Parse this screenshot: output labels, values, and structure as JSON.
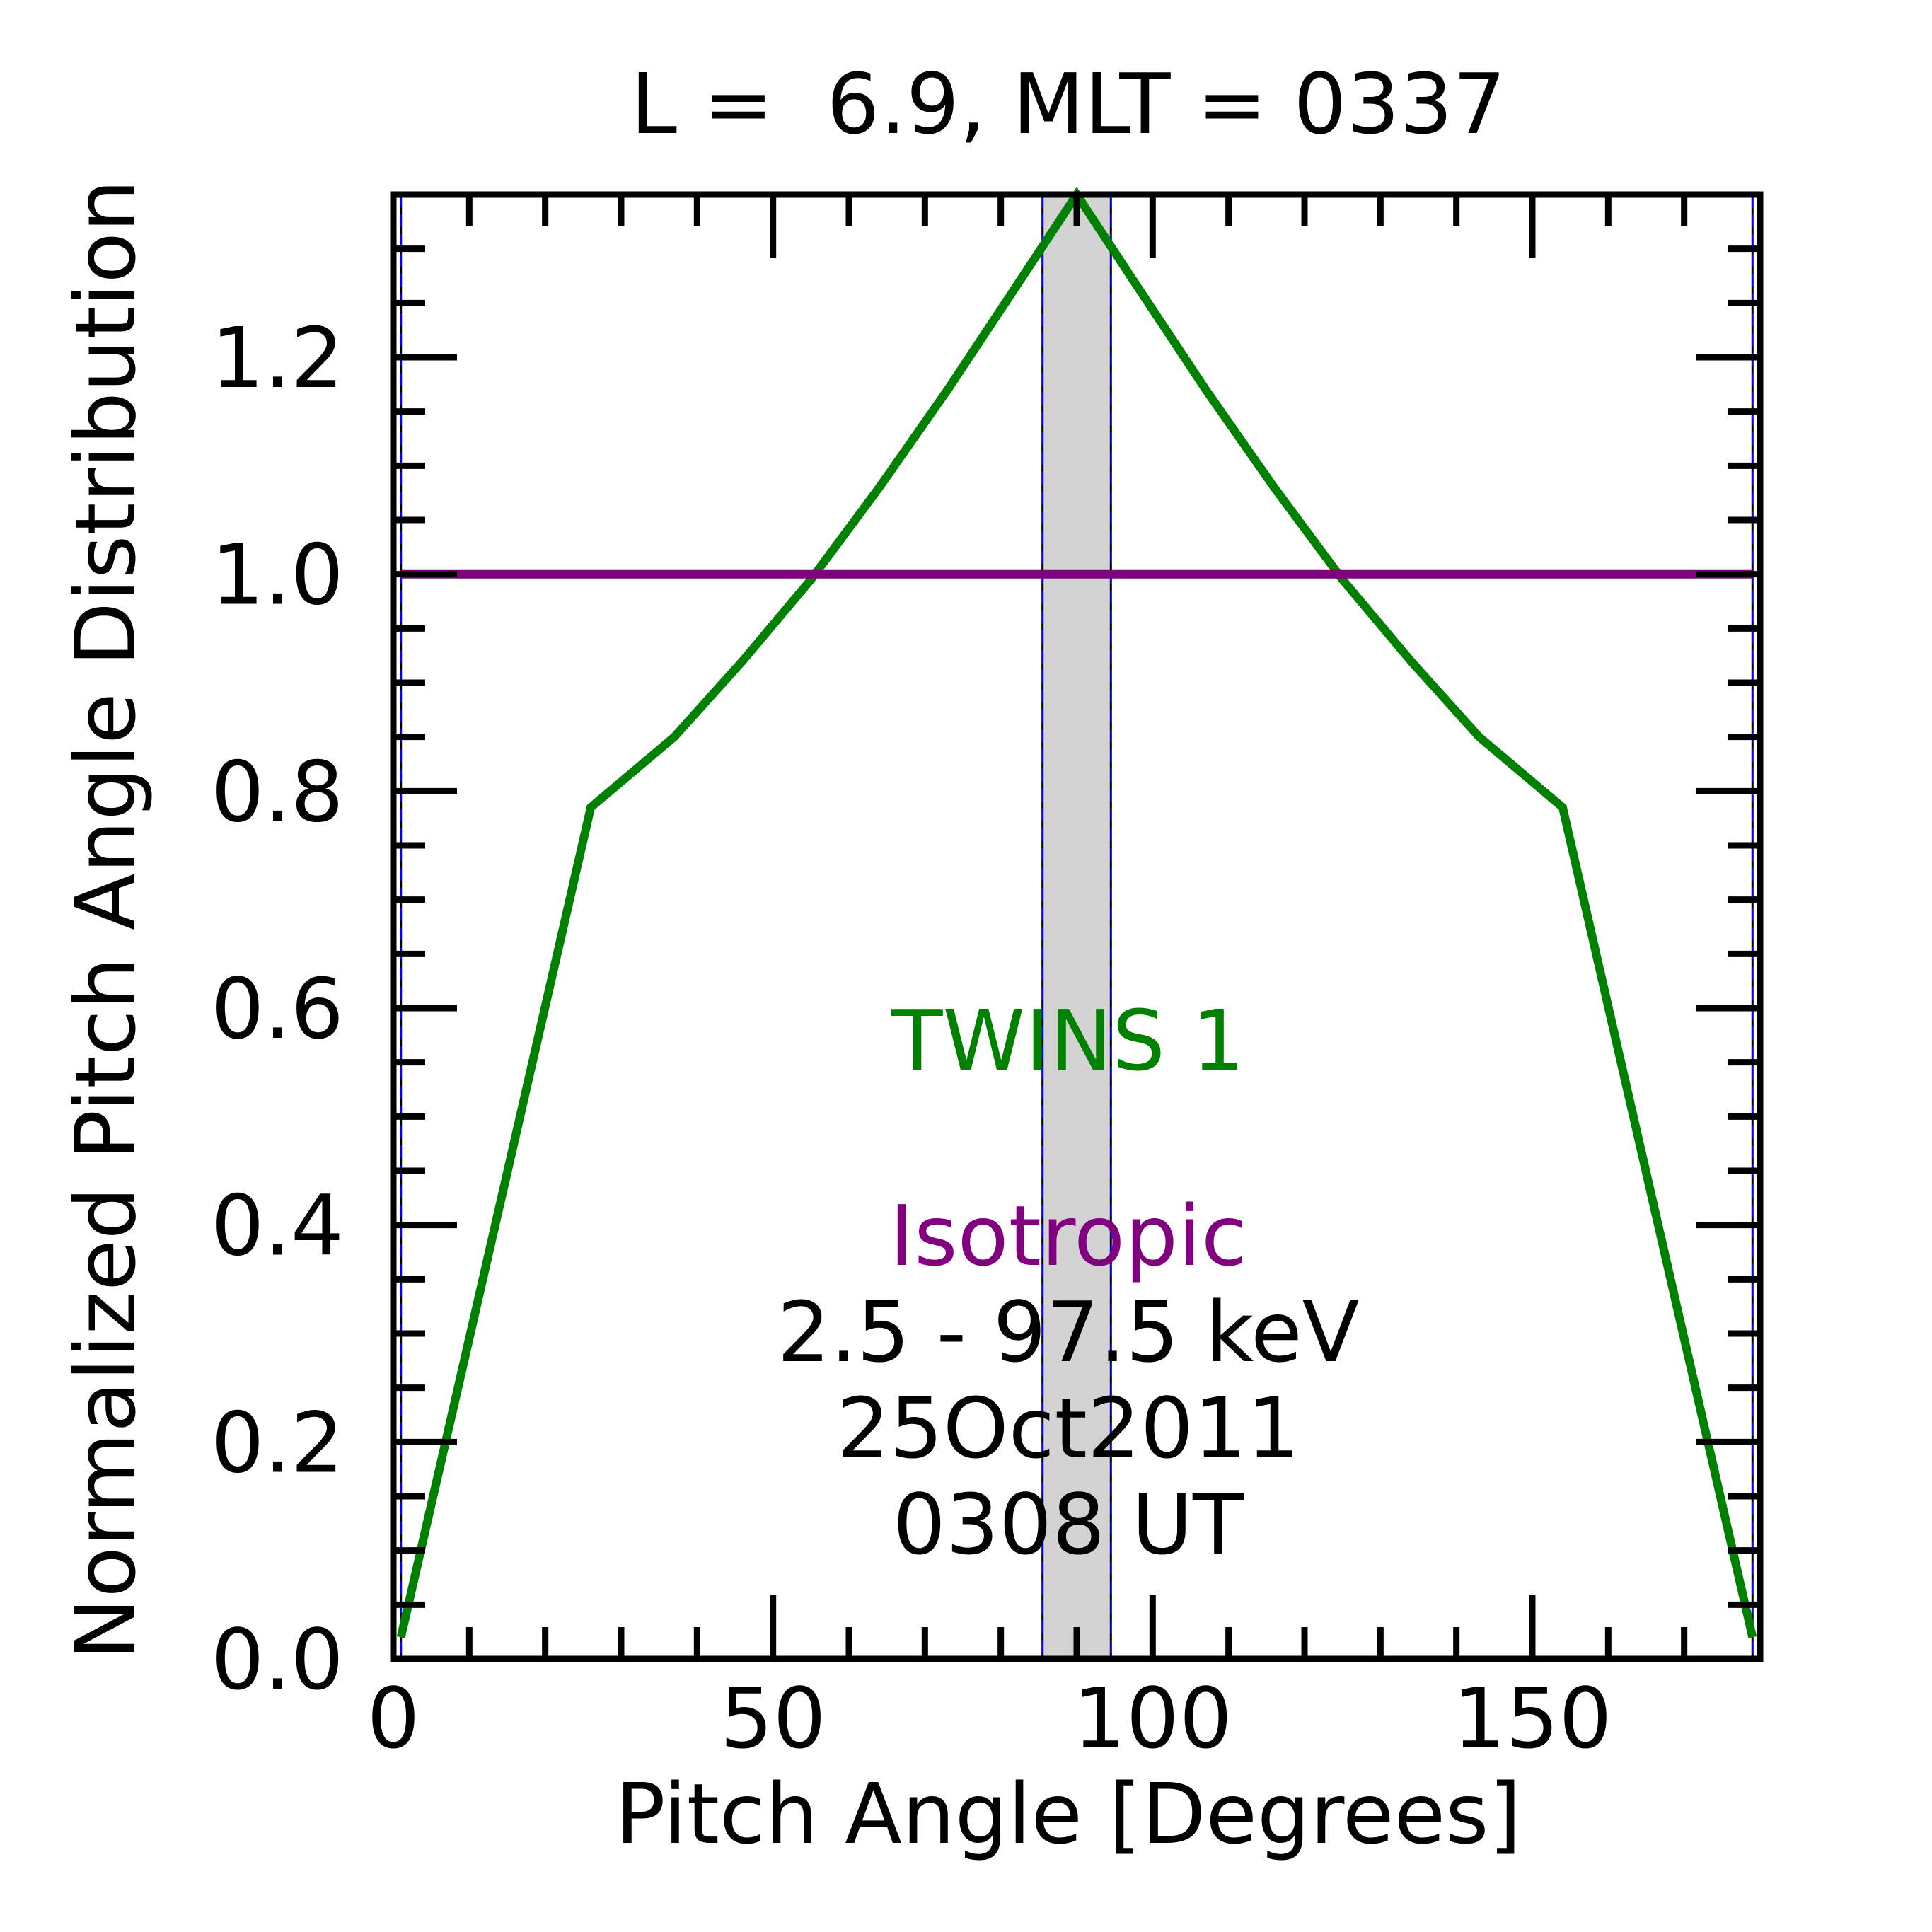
{
  "chart_data": {
    "type": "line",
    "title": "L =  6.9, MLT = 0337",
    "xlabel": "Pitch Angle [Degrees]",
    "ylabel": "Normalized Pitch Angle Distribution",
    "xlim": [
      0,
      180
    ],
    "ylim": [
      0,
      1.35
    ],
    "xticks": [
      0,
      50,
      100,
      150
    ],
    "xtick_labels": [
      "0",
      "50",
      "100",
      "150"
    ],
    "yticks": [
      0.0,
      0.2,
      0.4,
      0.6,
      0.8,
      1.0,
      1.2
    ],
    "ytick_labels": [
      "0.0",
      "0.2",
      "0.4",
      "0.6",
      "0.8",
      "1.0",
      "1.2"
    ],
    "grid": false,
    "shaded_band": {
      "x_start": 85.5,
      "x_end": 94.5,
      "color": "#d3d3d3"
    },
    "vertical_lines": [
      {
        "x": 1,
        "color": "#0000ff",
        "style": "dashed"
      },
      {
        "x": 85.5,
        "color": "#0000ff",
        "style": "dashed"
      },
      {
        "x": 94.5,
        "color": "#0000ff",
        "style": "dashed"
      },
      {
        "x": 179,
        "color": "#0000ff",
        "style": "dashed"
      }
    ],
    "series": [
      {
        "name": "TWINS 1",
        "color": "#008000",
        "x": [
          1,
          26,
          37,
          46,
          55,
          64,
          73,
          82,
          90,
          98,
          107,
          116,
          125,
          134,
          143,
          154,
          179
        ],
        "y": [
          0.02,
          0.785,
          0.85,
          0.92,
          0.995,
          1.08,
          1.17,
          1.265,
          1.35,
          1.265,
          1.17,
          1.08,
          0.995,
          0.92,
          0.85,
          0.785,
          0.02
        ]
      },
      {
        "name": "Isotropic",
        "color": "#800080",
        "x": [
          1,
          179
        ],
        "y": [
          1.0,
          1.0
        ]
      }
    ],
    "annotations": {
      "series1_label": "TWINS 1",
      "series2_label": "Isotropic",
      "energy_range": "2.5 - 97.5 keV",
      "date": "25Oct2011",
      "time": "0308 UT"
    }
  }
}
